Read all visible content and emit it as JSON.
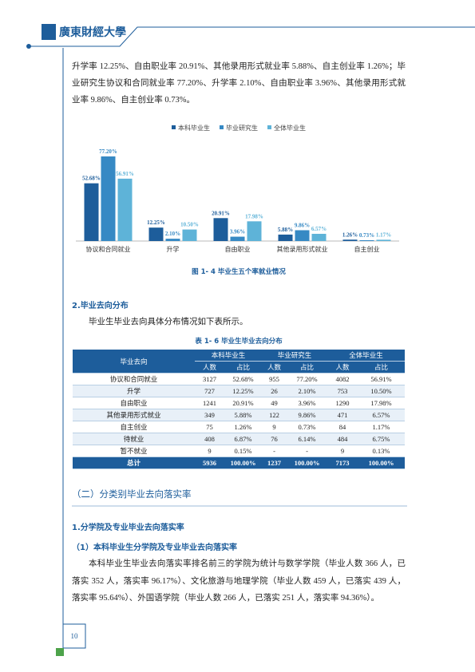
{
  "header": {
    "logo_text": "廣東財經大學"
  },
  "paragraph_1": "升学率 12.25%、自由职业率 20.91%、其他录用形式就业率 5.88%、自主创业率 1.26%；毕业研究生协议和合同就业率 77.20%、升学率 2.10%、自由职业率 3.96%、其他录用形式就业率 9.86%、自主创业率 0.73%。",
  "chart_data": {
    "type": "bar",
    "categories": [
      "协议和合同就业",
      "升学",
      "自由职业",
      "其他录用形式就业",
      "自主创业"
    ],
    "series": [
      {
        "name": "本科毕业生",
        "color": "#1d5d9b",
        "values": [
          52.68,
          12.25,
          20.91,
          5.88,
          1.26
        ],
        "value_labels": [
          "52.68%",
          "12.25%",
          "20.91%",
          "5.88%",
          "1.26%"
        ]
      },
      {
        "name": "毕业研究生",
        "color": "#3689c4",
        "values": [
          77.2,
          2.1,
          3.96,
          9.86,
          0.73
        ],
        "value_labels": [
          "77.20%",
          "2.10%",
          "3.96%",
          "9.86%",
          "0.73%"
        ]
      },
      {
        "name": "全体毕业生",
        "color": "#5eb3d8",
        "values": [
          56.91,
          10.5,
          17.98,
          6.57,
          1.17
        ],
        "value_labels": [
          "56.91%",
          "10.50%",
          "17.98%",
          "6.57%",
          "1.17%"
        ]
      }
    ]
  },
  "figure_caption": "图 1- 4  毕业生五个率就业情况",
  "section_2": "2.毕业去向分布",
  "paragraph_2": "毕业生毕业去向具体分布情况如下表所示。",
  "table": {
    "title": "表 1- 6  毕业生毕业去向分布",
    "row_header": "毕业去向",
    "groups": [
      "本科毕业生",
      "毕业研究生",
      "全体毕业生"
    ],
    "subheaders": [
      "人数",
      "占比",
      "人数",
      "占比",
      "人数",
      "占比"
    ],
    "rows": [
      [
        "协议和合同就业",
        "3127",
        "52.68%",
        "955",
        "77.20%",
        "4082",
        "56.91%"
      ],
      [
        "升学",
        "727",
        "12.25%",
        "26",
        "2.10%",
        "753",
        "10.50%"
      ],
      [
        "自由职业",
        "1241",
        "20.91%",
        "49",
        "3.96%",
        "1290",
        "17.98%"
      ],
      [
        "其他录用形式就业",
        "349",
        "5.88%",
        "122",
        "9.86%",
        "471",
        "6.57%"
      ],
      [
        "自主创业",
        "75",
        "1.26%",
        "9",
        "0.73%",
        "84",
        "1.17%"
      ],
      [
        "待就业",
        "408",
        "6.87%",
        "76",
        "6.14%",
        "484",
        "6.75%"
      ],
      [
        "暂不就业",
        "9",
        "0.15%",
        "-",
        "-",
        "9",
        "0.13%"
      ]
    ],
    "total": [
      "总计",
      "5936",
      "100.00%",
      "1237",
      "100.00%",
      "7173",
      "100.00%"
    ]
  },
  "section_heading": "（二）分类别毕业去向落实率",
  "subsection_1": "1.分学院及专业毕业去向落实率",
  "subsection_1_1": "（1）本科毕业生分学院及专业毕业去向落实率",
  "paragraph_3": "本科毕业生毕业去向落实率排名前三的学院为统计与数学学院（毕业人数 366 人，已落实 352 人，落实率 96.17%）、文化旅游与地理学院（毕业人数 459 人，已落实 439 人，落实率 95.64%）、外国语学院（毕业人数 266 人，已落实 251 人，落实率 94.36%）。",
  "page_number": "10"
}
